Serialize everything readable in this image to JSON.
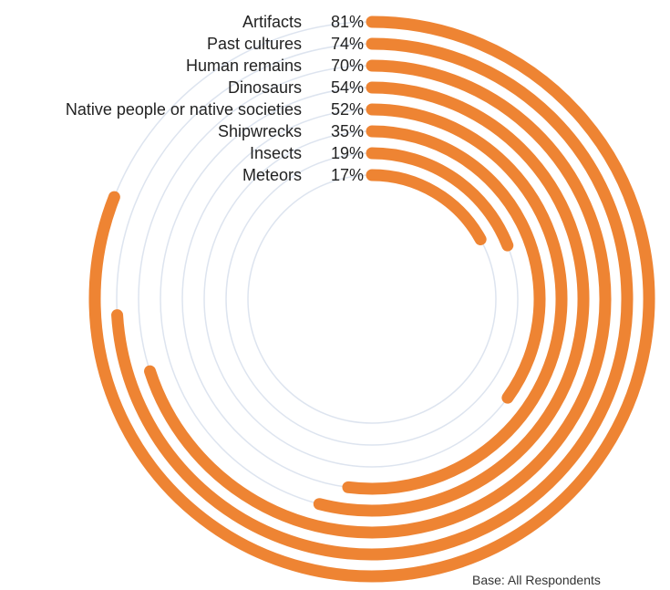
{
  "chart_data": {
    "type": "radial-bar",
    "categories": [
      "Artifacts",
      "Past cultures",
      "Human remains",
      "Dinosaurs",
      "Native people or native societies",
      "Shipwrecks",
      "Insects",
      "Meteors"
    ],
    "values": [
      81,
      74,
      70,
      54,
      52,
      35,
      19,
      17
    ],
    "value_labels": [
      "81%",
      "74%",
      "70%",
      "54%",
      "52%",
      "35%",
      "19%",
      "17%"
    ],
    "unit": "%",
    "max_value": 100,
    "colors": {
      "bar": "#ee8433",
      "track": "#dde4ef",
      "text": "#222222"
    }
  },
  "footnote": "Base: All Respondents"
}
